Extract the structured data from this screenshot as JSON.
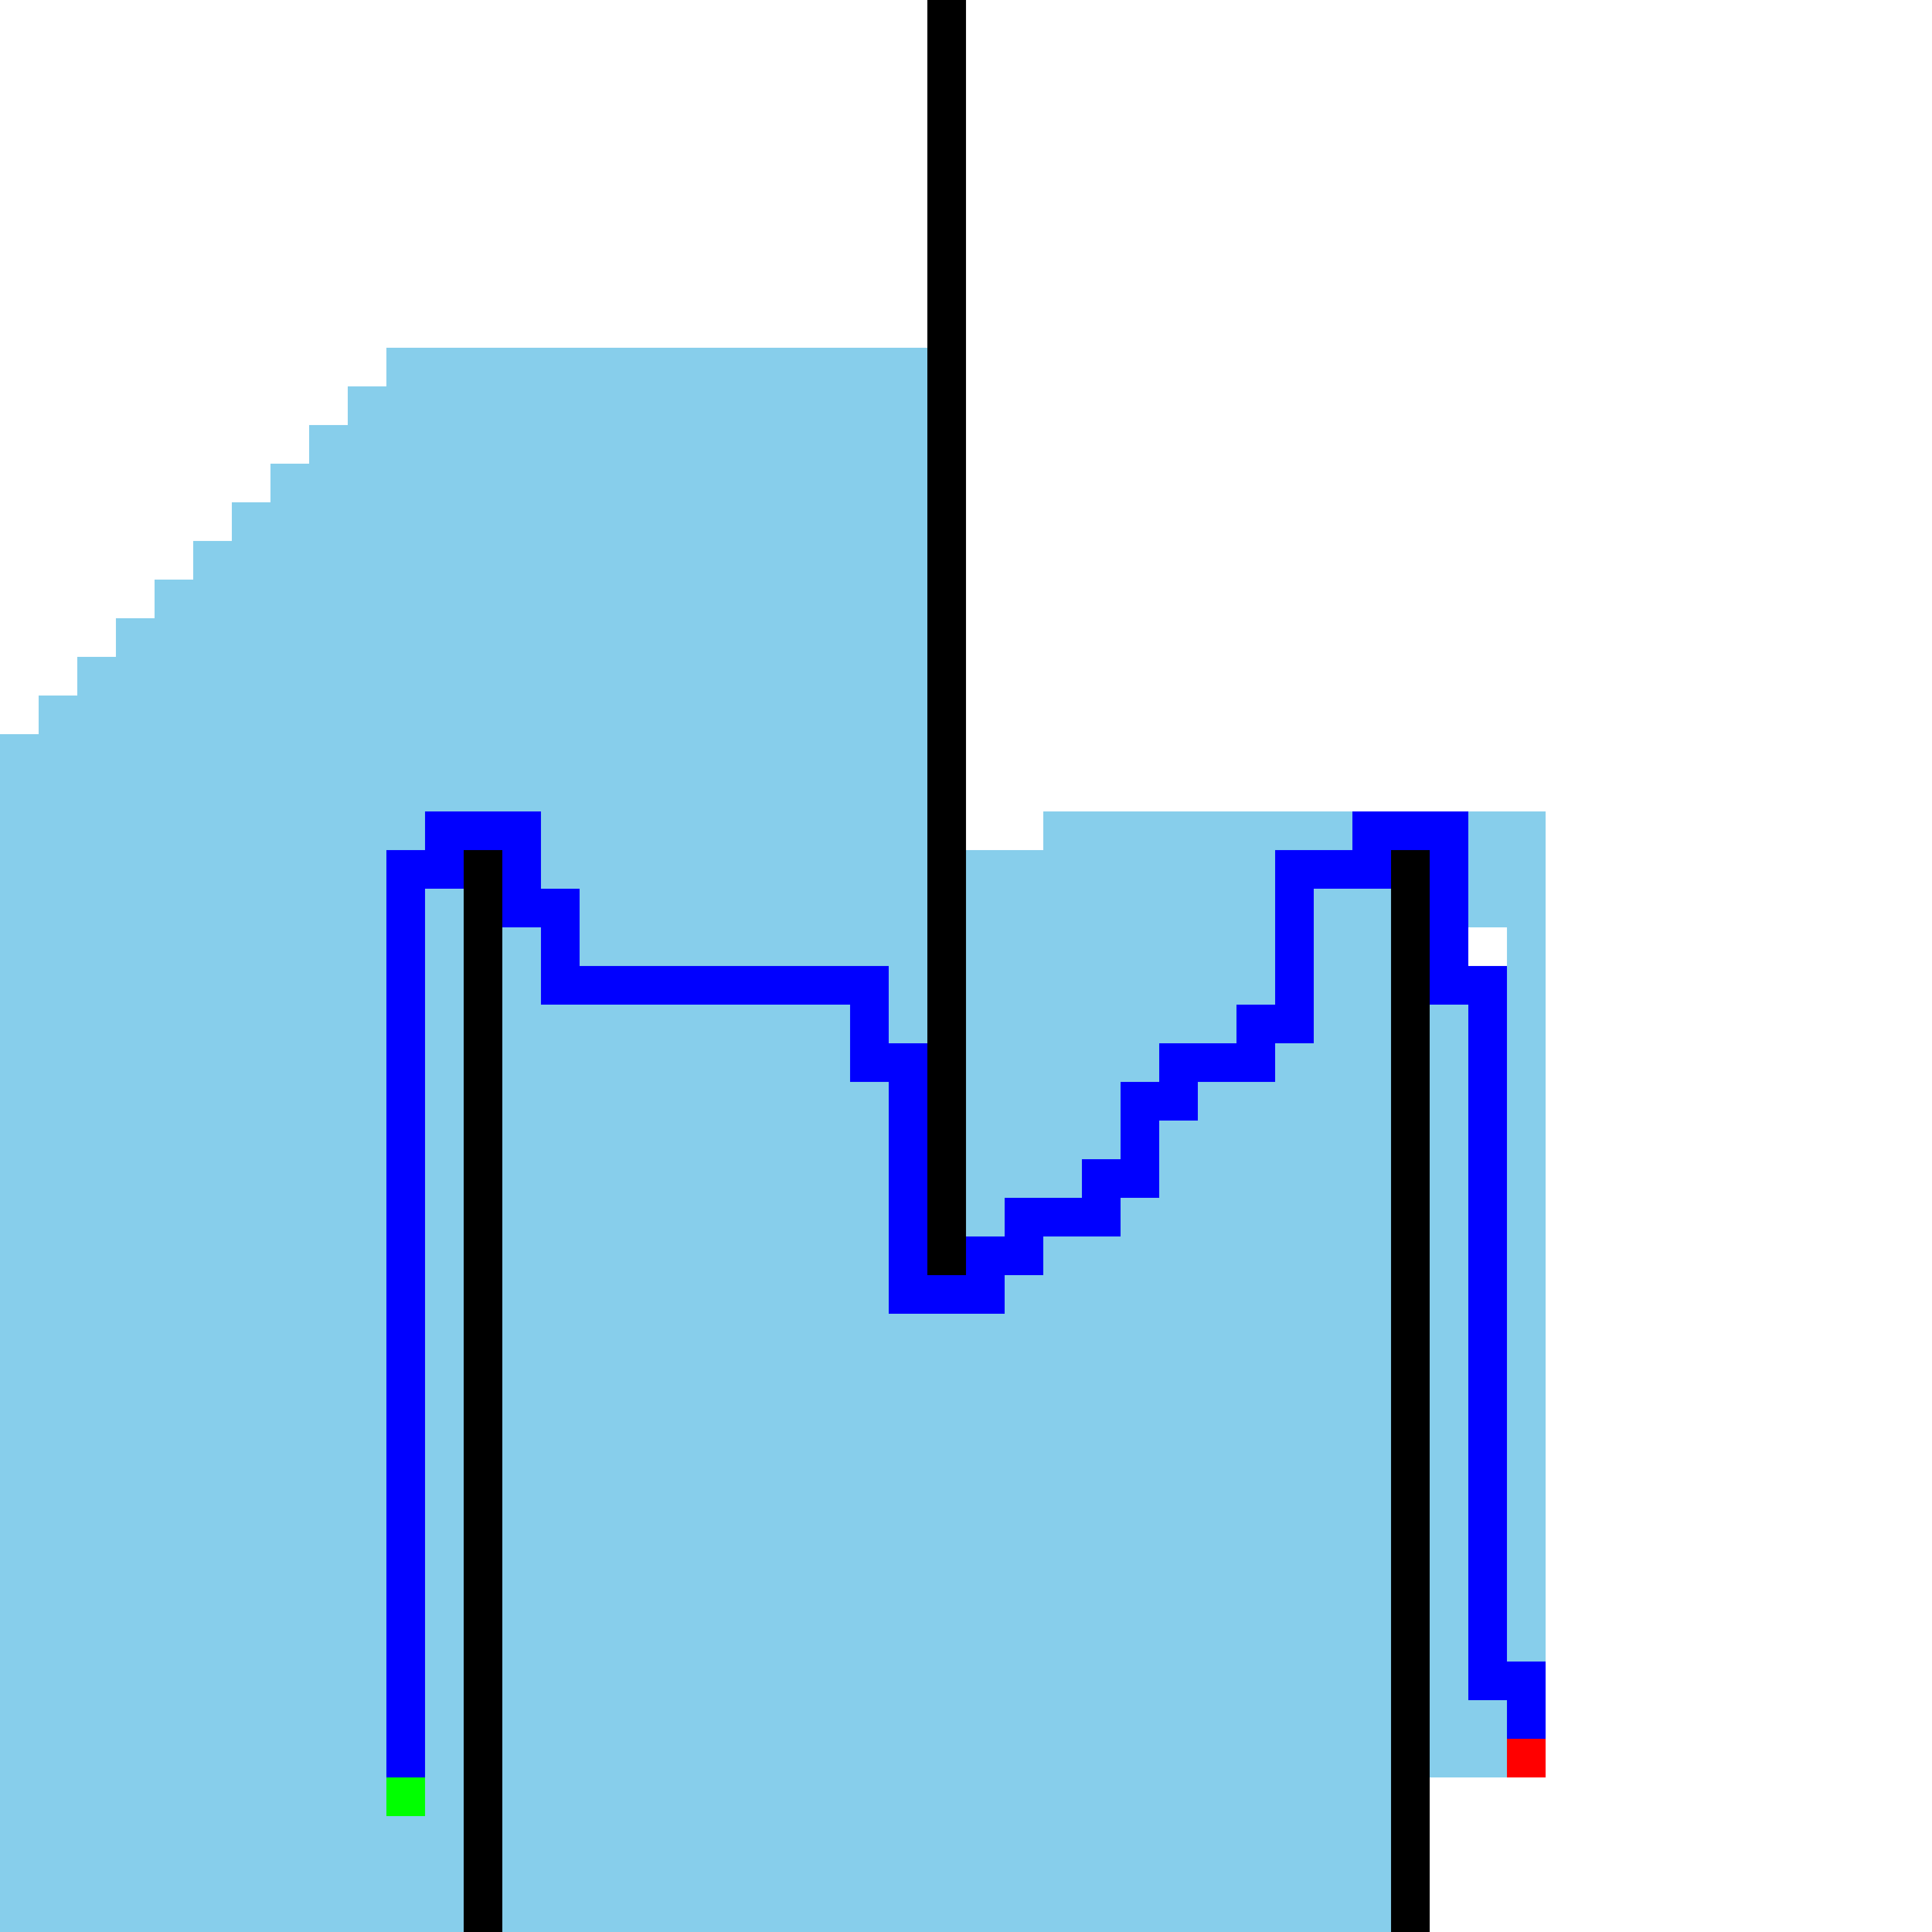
{
  "grid": {
    "cols": 50,
    "rows": 50
  },
  "colors": {
    "background": "#ffffff",
    "region": "#87ceeb",
    "wall": "#000000",
    "path": "#0000ff",
    "start": "#00ff00",
    "goal": "#ff0000"
  },
  "region_rows": [
    {
      "row": 9,
      "spans": [
        [
          10,
          23
        ]
      ]
    },
    {
      "row": 10,
      "spans": [
        [
          9,
          23
        ]
      ]
    },
    {
      "row": 11,
      "spans": [
        [
          8,
          23
        ]
      ]
    },
    {
      "row": 12,
      "spans": [
        [
          7,
          23
        ]
      ]
    },
    {
      "row": 13,
      "spans": [
        [
          6,
          23
        ]
      ]
    },
    {
      "row": 14,
      "spans": [
        [
          5,
          23
        ]
      ]
    },
    {
      "row": 15,
      "spans": [
        [
          4,
          23
        ]
      ]
    },
    {
      "row": 16,
      "spans": [
        [
          3,
          23
        ]
      ]
    },
    {
      "row": 17,
      "spans": [
        [
          2,
          23
        ]
      ]
    },
    {
      "row": 18,
      "spans": [
        [
          1,
          23
        ]
      ]
    },
    {
      "row": 19,
      "spans": [
        [
          0,
          23
        ]
      ]
    },
    {
      "row": 20,
      "spans": [
        [
          0,
          23
        ]
      ]
    },
    {
      "row": 21,
      "spans": [
        [
          0,
          23
        ],
        [
          27,
          39
        ]
      ]
    },
    {
      "row": 22,
      "spans": [
        [
          0,
          23
        ],
        [
          25,
          39
        ]
      ]
    },
    {
      "row": 23,
      "spans": [
        [
          0,
          39
        ]
      ]
    },
    {
      "row": 24,
      "spans": [
        [
          0,
          37
        ],
        [
          39,
          39
        ]
      ]
    },
    {
      "row": 25,
      "spans": [
        [
          0,
          39
        ]
      ]
    },
    {
      "row": 26,
      "spans": [
        [
          0,
          39
        ]
      ]
    },
    {
      "row": 27,
      "spans": [
        [
          0,
          39
        ]
      ]
    },
    {
      "row": 28,
      "spans": [
        [
          0,
          39
        ]
      ]
    },
    {
      "row": 29,
      "spans": [
        [
          0,
          39
        ]
      ]
    },
    {
      "row": 30,
      "spans": [
        [
          0,
          39
        ]
      ]
    },
    {
      "row": 31,
      "spans": [
        [
          0,
          39
        ]
      ]
    },
    {
      "row": 32,
      "spans": [
        [
          0,
          39
        ]
      ]
    },
    {
      "row": 33,
      "spans": [
        [
          0,
          39
        ]
      ]
    },
    {
      "row": 34,
      "spans": [
        [
          0,
          39
        ]
      ]
    },
    {
      "row": 35,
      "spans": [
        [
          0,
          39
        ]
      ]
    },
    {
      "row": 36,
      "spans": [
        [
          0,
          39
        ]
      ]
    },
    {
      "row": 37,
      "spans": [
        [
          0,
          39
        ]
      ]
    },
    {
      "row": 38,
      "spans": [
        [
          0,
          39
        ]
      ]
    },
    {
      "row": 39,
      "spans": [
        [
          0,
          39
        ]
      ]
    },
    {
      "row": 40,
      "spans": [
        [
          0,
          39
        ]
      ]
    },
    {
      "row": 41,
      "spans": [
        [
          0,
          39
        ]
      ]
    },
    {
      "row": 42,
      "spans": [
        [
          0,
          39
        ]
      ]
    },
    {
      "row": 43,
      "spans": [
        [
          0,
          39
        ]
      ]
    },
    {
      "row": 44,
      "spans": [
        [
          0,
          39
        ]
      ]
    },
    {
      "row": 45,
      "spans": [
        [
          0,
          39
        ]
      ]
    },
    {
      "row": 46,
      "spans": [
        [
          0,
          36
        ]
      ]
    },
    {
      "row": 47,
      "spans": [
        [
          0,
          36
        ]
      ]
    },
    {
      "row": 48,
      "spans": [
        [
          0,
          36
        ]
      ]
    },
    {
      "row": 49,
      "spans": [
        [
          0,
          36
        ]
      ]
    }
  ],
  "walls": [
    {
      "col": 24,
      "row_start": 0,
      "row_end": 32
    },
    {
      "col": 12,
      "row_start": 22,
      "row_end": 49
    },
    {
      "col": 36,
      "row_start": 22,
      "row_end": 49
    }
  ],
  "path_cells": [
    [
      10,
      45
    ],
    [
      10,
      44
    ],
    [
      10,
      43
    ],
    [
      10,
      42
    ],
    [
      10,
      41
    ],
    [
      10,
      40
    ],
    [
      10,
      39
    ],
    [
      10,
      38
    ],
    [
      10,
      37
    ],
    [
      10,
      36
    ],
    [
      10,
      35
    ],
    [
      10,
      34
    ],
    [
      10,
      33
    ],
    [
      10,
      32
    ],
    [
      10,
      31
    ],
    [
      10,
      30
    ],
    [
      10,
      29
    ],
    [
      10,
      28
    ],
    [
      10,
      27
    ],
    [
      10,
      26
    ],
    [
      10,
      25
    ],
    [
      10,
      24
    ],
    [
      10,
      23
    ],
    [
      10,
      22
    ],
    [
      11,
      22
    ],
    [
      11,
      21
    ],
    [
      12,
      21
    ],
    [
      13,
      21
    ],
    [
      13,
      22
    ],
    [
      13,
      23
    ],
    [
      14,
      23
    ],
    [
      14,
      24
    ],
    [
      14,
      25
    ],
    [
      15,
      25
    ],
    [
      16,
      25
    ],
    [
      17,
      25
    ],
    [
      18,
      25
    ],
    [
      19,
      25
    ],
    [
      20,
      25
    ],
    [
      21,
      25
    ],
    [
      22,
      25
    ],
    [
      22,
      26
    ],
    [
      22,
      27
    ],
    [
      23,
      27
    ],
    [
      23,
      28
    ],
    [
      23,
      29
    ],
    [
      23,
      30
    ],
    [
      23,
      31
    ],
    [
      23,
      32
    ],
    [
      23,
      33
    ],
    [
      24,
      33
    ],
    [
      25,
      33
    ],
    [
      25,
      32
    ],
    [
      26,
      32
    ],
    [
      26,
      31
    ],
    [
      27,
      31
    ],
    [
      28,
      31
    ],
    [
      28,
      30
    ],
    [
      29,
      30
    ],
    [
      29,
      29
    ],
    [
      29,
      28
    ],
    [
      30,
      28
    ],
    [
      30,
      27
    ],
    [
      31,
      27
    ],
    [
      32,
      27
    ],
    [
      32,
      26
    ],
    [
      33,
      26
    ],
    [
      33,
      25
    ],
    [
      33,
      24
    ],
    [
      33,
      23
    ],
    [
      33,
      22
    ],
    [
      34,
      22
    ],
    [
      35,
      22
    ],
    [
      35,
      21
    ],
    [
      36,
      21
    ],
    [
      37,
      21
    ],
    [
      37,
      22
    ],
    [
      37,
      23
    ],
    [
      37,
      24
    ],
    [
      37,
      25
    ],
    [
      38,
      25
    ],
    [
      38,
      26
    ],
    [
      38,
      27
    ],
    [
      38,
      28
    ],
    [
      38,
      29
    ],
    [
      38,
      30
    ],
    [
      38,
      31
    ],
    [
      38,
      32
    ],
    [
      38,
      33
    ],
    [
      38,
      34
    ],
    [
      38,
      35
    ],
    [
      38,
      36
    ],
    [
      38,
      37
    ],
    [
      38,
      38
    ],
    [
      38,
      39
    ],
    [
      38,
      40
    ],
    [
      38,
      41
    ],
    [
      38,
      42
    ],
    [
      38,
      43
    ],
    [
      39,
      43
    ],
    [
      39,
      44
    ]
  ],
  "start": [
    10,
    46
  ],
  "goal": [
    39,
    45
  ]
}
